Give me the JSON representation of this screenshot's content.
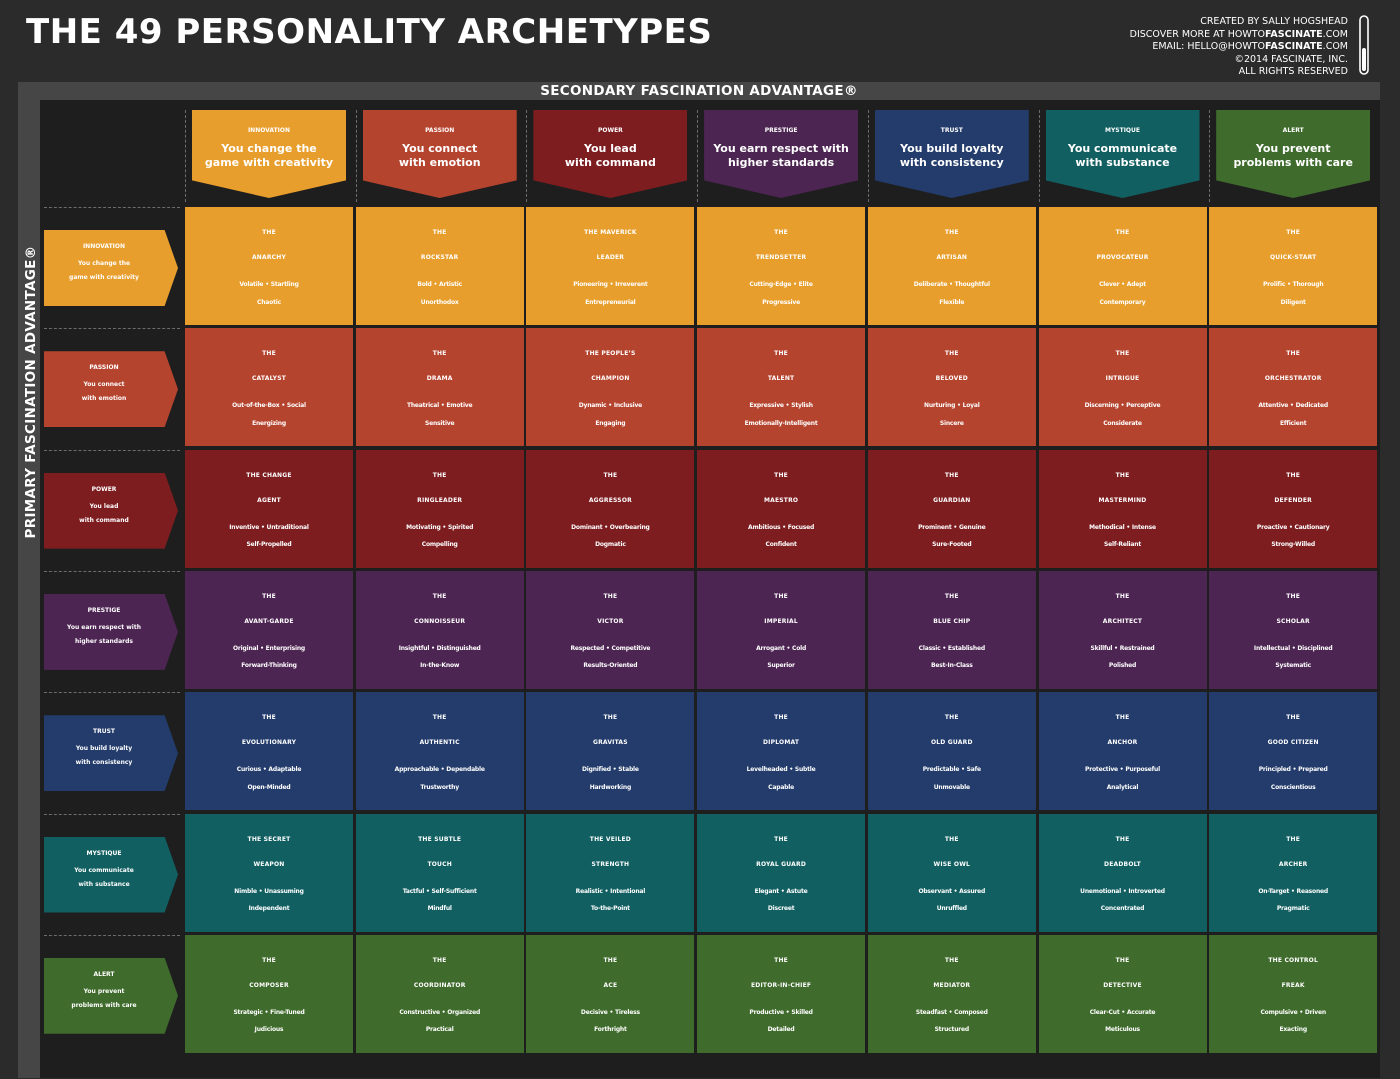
{
  "title": "THE 49 PERSONALITY ARCHETYPES",
  "credits": {
    "line1": "CREATED BY SALLY HOGSHEAD",
    "line2_prefix": "DISCOVER MORE AT HOWTO",
    "line2_bold": "FASCINATE",
    "line2_suffix": ".COM",
    "line3_prefix": "EMAIL: HELLO@HOWTO",
    "line3_bold": "FASCINATE",
    "line3_suffix": ".COM",
    "line4": "©2014 FASCINATE, INC.",
    "line5": "ALL RIGHTS RESERVED"
  },
  "secondary_label": "SECONDARY FASCINATION ADVANTAGE®",
  "primary_label": "PRIMARY FASCINATION ADVANTAGE®",
  "colors": {
    "innovation": "#e89e2c",
    "passion": "#b5442f",
    "power": "#7d1d20",
    "prestige": "#4d2552",
    "trust": "#233c6b",
    "mystique": "#125f62",
    "alert": "#3f6b2c"
  },
  "advantages": [
    {
      "key": "innovation",
      "name": "INNOVATION",
      "desc1": "You change the",
      "desc2": "game with creativity"
    },
    {
      "key": "passion",
      "name": "PASSION",
      "desc1": "You connect",
      "desc2": "with emotion"
    },
    {
      "key": "power",
      "name": "POWER",
      "desc1": "You lead",
      "desc2": "with command"
    },
    {
      "key": "prestige",
      "name": "PRESTIGE",
      "desc1": "You earn respect with",
      "desc2": "higher standards"
    },
    {
      "key": "trust",
      "name": "TRUST",
      "desc1": "You build loyalty",
      "desc2": "with consistency"
    },
    {
      "key": "mystique",
      "name": "MYSTIQUE",
      "desc1": "You communicate",
      "desc2": "with substance"
    },
    {
      "key": "alert",
      "name": "ALERT",
      "desc1": "You prevent",
      "desc2": "problems with care"
    }
  ],
  "rows": [
    [
      {
        "t1": "THE",
        "t2": "ANARCHY",
        "a": "Volatile • Startling",
        "b": "Chaotic"
      },
      {
        "t1": "THE",
        "t2": "ROCKSTAR",
        "a": "Bold • Artistic",
        "b": "Unorthodox"
      },
      {
        "t1": "THE MAVERICK",
        "t2": "LEADER",
        "a": "Pioneering • Irreverent",
        "b": "Entrepreneurial"
      },
      {
        "t1": "THE",
        "t2": "TRENDSETTER",
        "a": "Cutting-Edge • Elite",
        "b": "Progressive"
      },
      {
        "t1": "THE",
        "t2": "ARTISAN",
        "a": "Deliberate • Thoughtful",
        "b": "Flexible"
      },
      {
        "t1": "THE",
        "t2": "PROVOCATEUR",
        "a": "Clever • Adept",
        "b": "Contemporary"
      },
      {
        "t1": "THE",
        "t2": "QUICK-START",
        "a": "Prolific • Thorough",
        "b": "Diligent"
      }
    ],
    [
      {
        "t1": "THE",
        "t2": "CATALYST",
        "a": "Out-of-the-Box • Social",
        "b": "Energizing"
      },
      {
        "t1": "THE",
        "t2": "DRAMA",
        "a": "Theatrical • Emotive",
        "b": "Sensitive"
      },
      {
        "t1": "THE PEOPLE’S",
        "t2": "CHAMPION",
        "a": "Dynamic • Inclusive",
        "b": "Engaging"
      },
      {
        "t1": "THE",
        "t2": "TALENT",
        "a": "Expressive • Stylish",
        "b": "Emotionally-Intelligent"
      },
      {
        "t1": "THE",
        "t2": "BELOVED",
        "a": "Nurturing • Loyal",
        "b": "Sincere"
      },
      {
        "t1": "THE",
        "t2": "INTRIGUE",
        "a": "Discerning • Perceptive",
        "b": "Considerate"
      },
      {
        "t1": "THE",
        "t2": "ORCHESTRATOR",
        "a": "Attentive • Dedicated",
        "b": "Efficient"
      }
    ],
    [
      {
        "t1": "THE CHANGE",
        "t2": "AGENT",
        "a": "Inventive • Untraditional",
        "b": "Self-Propelled"
      },
      {
        "t1": "THE",
        "t2": "RINGLEADER",
        "a": "Motivating • Spirited",
        "b": "Compelling"
      },
      {
        "t1": "THE",
        "t2": "AGGRESSOR",
        "a": "Dominant • Overbearing",
        "b": "Dogmatic"
      },
      {
        "t1": "THE",
        "t2": "MAESTRO",
        "a": "Ambitious • Focused",
        "b": "Confident"
      },
      {
        "t1": "THE",
        "t2": "GUARDIAN",
        "a": "Prominent • Genuine",
        "b": "Sure-Footed"
      },
      {
        "t1": "THE",
        "t2": "MASTERMIND",
        "a": "Methodical • Intense",
        "b": "Self-Reliant"
      },
      {
        "t1": "THE",
        "t2": "DEFENDER",
        "a": "Proactive • Cautionary",
        "b": "Strong-Willed"
      }
    ],
    [
      {
        "t1": "THE",
        "t2": "AVANT-GARDE",
        "a": "Original • Enterprising",
        "b": "Forward-Thinking"
      },
      {
        "t1": "THE",
        "t2": "CONNOISSEUR",
        "a": "Insightful • Distinguished",
        "b": "In-the-Know"
      },
      {
        "t1": "THE",
        "t2": "VICTOR",
        "a": "Respected • Competitive",
        "b": "Results-Oriented"
      },
      {
        "t1": "THE",
        "t2": "IMPERIAL",
        "a": "Arrogant • Cold",
        "b": "Superior"
      },
      {
        "t1": "THE",
        "t2": "BLUE CHIP",
        "a": "Classic • Established",
        "b": "Best-In-Class"
      },
      {
        "t1": "THE",
        "t2": "ARCHITECT",
        "a": "Skillful • Restrained",
        "b": "Polished"
      },
      {
        "t1": "THE",
        "t2": "SCHOLAR",
        "a": "Intellectual • Disciplined",
        "b": "Systematic"
      }
    ],
    [
      {
        "t1": "THE",
        "t2": "EVOLUTIONARY",
        "a": "Curious • Adaptable",
        "b": "Open-Minded"
      },
      {
        "t1": "THE",
        "t2": "AUTHENTIC",
        "a": "Approachable • Dependable",
        "b": "Trustworthy"
      },
      {
        "t1": "THE",
        "t2": "GRAVITAS",
        "a": "Dignified • Stable",
        "b": "Hardworking"
      },
      {
        "t1": "THE",
        "t2": "DIPLOMAT",
        "a": "Levelheaded • Subtle",
        "b": "Capable"
      },
      {
        "t1": "THE",
        "t2": "OLD GUARD",
        "a": "Predictable • Safe",
        "b": "Unmovable"
      },
      {
        "t1": "THE",
        "t2": "ANCHOR",
        "a": "Protective • Purposeful",
        "b": "Analytical"
      },
      {
        "t1": "THE",
        "t2": "GOOD CITIZEN",
        "a": "Principled • Prepared",
        "b": "Conscientious"
      }
    ],
    [
      {
        "t1": "THE SECRET",
        "t2": "WEAPON",
        "a": "Nimble • Unassuming",
        "b": "Independent"
      },
      {
        "t1": "THE SUBTLE",
        "t2": "TOUCH",
        "a": "Tactful • Self-Sufficient",
        "b": "Mindful"
      },
      {
        "t1": "THE VEILED",
        "t2": "STRENGTH",
        "a": "Realistic • Intentional",
        "b": "To-the-Point"
      },
      {
        "t1": "THE",
        "t2": "ROYAL GUARD",
        "a": "Elegant • Astute",
        "b": "Discreet"
      },
      {
        "t1": "THE",
        "t2": "WISE OWL",
        "a": "Observant • Assured",
        "b": "Unruffled"
      },
      {
        "t1": "THE",
        "t2": "DEADBOLT",
        "a": "Unemotional • Introverted",
        "b": "Concentrated"
      },
      {
        "t1": "THE",
        "t2": "ARCHER",
        "a": "On-Target • Reasoned",
        "b": "Pragmatic"
      }
    ],
    [
      {
        "t1": "THE",
        "t2": "COMPOSER",
        "a": "Strategic • Fine-Tuned",
        "b": "Judicious"
      },
      {
        "t1": "THE",
        "t2": "COORDINATOR",
        "a": "Constructive • Organized",
        "b": "Practical"
      },
      {
        "t1": "THE",
        "t2": "ACE",
        "a": "Decisive • Tireless",
        "b": "Forthright"
      },
      {
        "t1": "THE",
        "t2": "EDITOR-IN-CHIEF",
        "a": "Productive • Skilled",
        "b": "Detailed"
      },
      {
        "t1": "THE",
        "t2": "MEDIATOR",
        "a": "Steadfast • Composed",
        "b": "Structured"
      },
      {
        "t1": "THE",
        "t2": "DETECTIVE",
        "a": "Clear-Cut • Accurate",
        "b": "Meticulous"
      },
      {
        "t1": "THE CONTROL",
        "t2": "FREAK",
        "a": "Compulsive • Driven",
        "b": "Exacting"
      }
    ]
  ]
}
